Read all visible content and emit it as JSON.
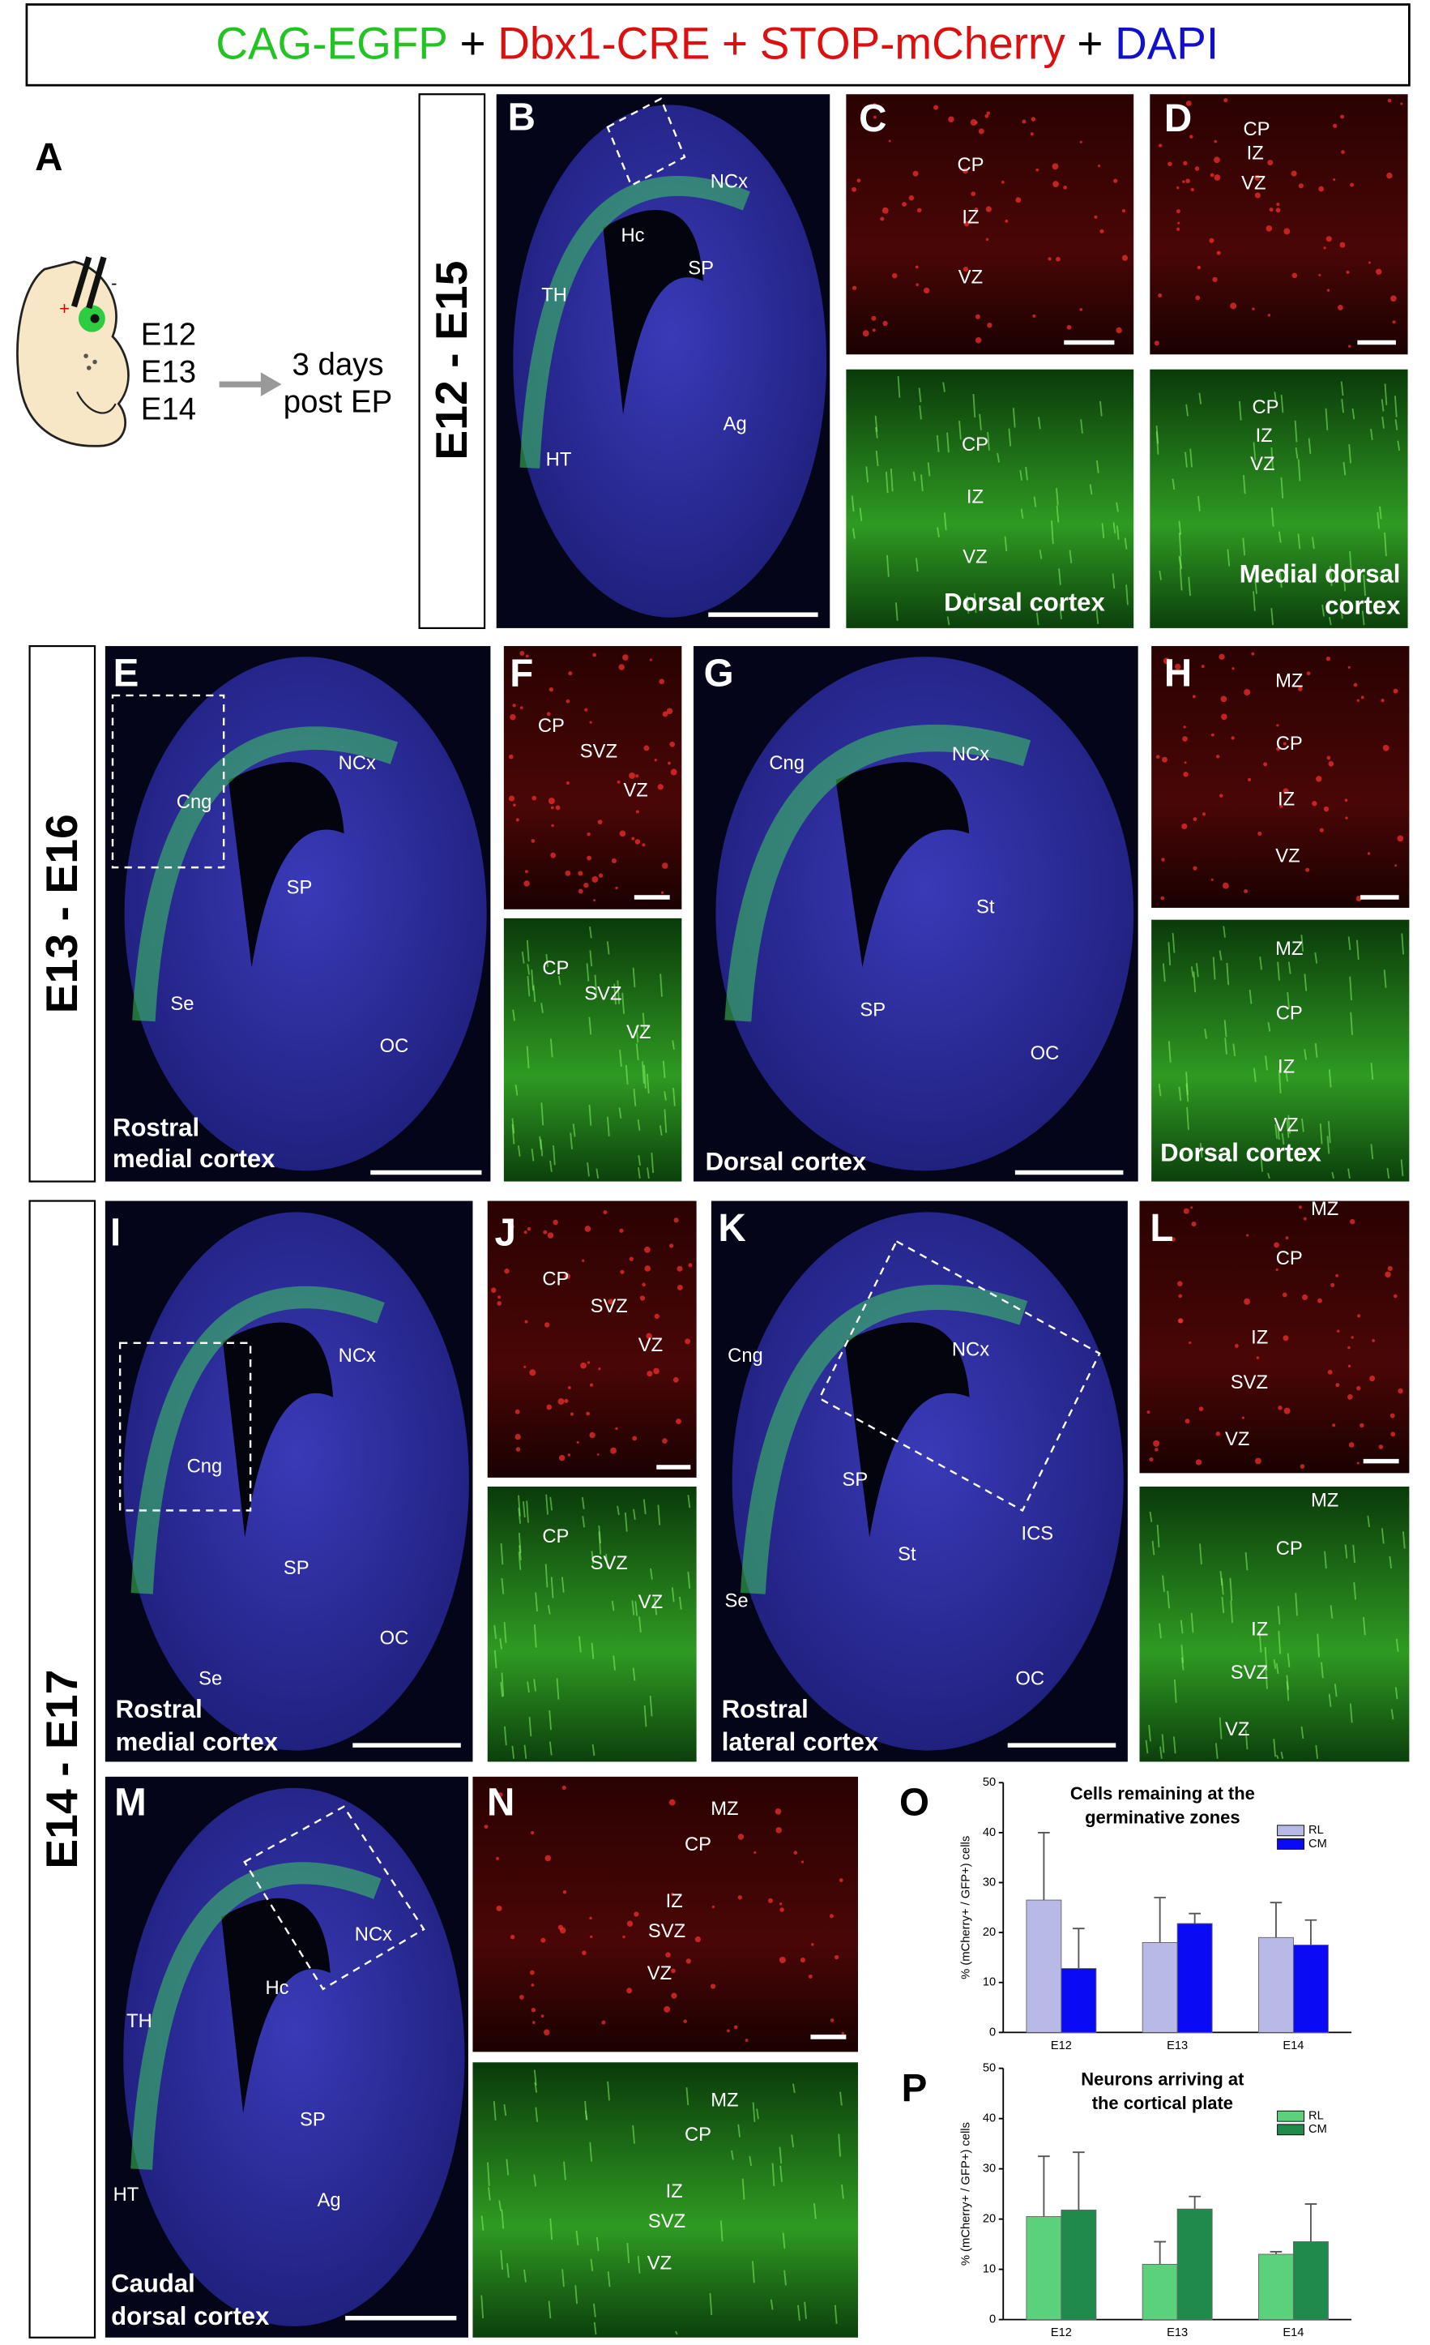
{
  "header": {
    "parts": [
      "CAG-EGFP",
      "+",
      "Dbx1-CRE",
      "+",
      "STOP-mCherry",
      "+",
      "DAPI"
    ]
  },
  "panel_a": {
    "label": "A",
    "stages": [
      "E12",
      "E13",
      "E14"
    ],
    "note": [
      "3 days",
      "post EP"
    ]
  },
  "row_labels": [
    "E12 - E15",
    "E13 - E16",
    "E14 - E17"
  ],
  "panels": {
    "B": {
      "label": "B",
      "regions": [
        "NCx",
        "Hc",
        "SP",
        "TH",
        "Ag",
        "HT"
      ]
    },
    "C": {
      "label": "C",
      "red": [
        "CP",
        "IZ",
        "VZ"
      ],
      "green": [
        "CP",
        "IZ",
        "VZ"
      ],
      "caption": [
        "Dorsal cortex"
      ]
    },
    "D": {
      "label": "D",
      "red": [
        "CP",
        "IZ",
        "VZ"
      ],
      "green": [
        "CP",
        "IZ",
        "VZ"
      ],
      "caption": [
        "Medial dorsal",
        "cortex"
      ]
    },
    "E": {
      "label": "E",
      "regions": [
        "NCx",
        "Cng",
        "SP",
        "Se",
        "OC"
      ],
      "caption": [
        "Rostral",
        "medial cortex"
      ]
    },
    "F": {
      "label": "F",
      "red": [
        "CP",
        "SVZ",
        "VZ"
      ],
      "green": [
        "CP",
        "SVZ",
        "VZ"
      ]
    },
    "G": {
      "label": "G",
      "regions": [
        "Cng",
        "NCx",
        "St",
        "SP",
        "OC"
      ],
      "caption": [
        "Dorsal cortex"
      ]
    },
    "H": {
      "label": "H",
      "red": [
        "MZ",
        "CP",
        "IZ",
        "VZ"
      ],
      "green": [
        "MZ",
        "CP",
        "IZ",
        "VZ"
      ],
      "caption": [
        "Dorsal cortex"
      ]
    },
    "I": {
      "label": "I",
      "regions": [
        "NCx",
        "Cng",
        "SP",
        "Se",
        "OC"
      ],
      "caption": [
        "Rostral",
        "medial cortex"
      ]
    },
    "J": {
      "label": "J",
      "red": [
        "CP",
        "SVZ",
        "VZ"
      ],
      "green": [
        "CP",
        "SVZ",
        "VZ"
      ]
    },
    "K": {
      "label": "K",
      "regions": [
        "Cng",
        "NCx",
        "SP",
        "St",
        "Se",
        "ICS",
        "OC"
      ],
      "caption": [
        "Rostral",
        "lateral cortex"
      ]
    },
    "L": {
      "label": "L",
      "red": [
        "MZ",
        "CP",
        "IZ",
        "SVZ",
        "VZ"
      ],
      "green": [
        "MZ",
        "CP",
        "IZ",
        "SVZ",
        "VZ"
      ]
    },
    "M": {
      "label": "M",
      "regions": [
        "NCx",
        "Hc",
        "TH",
        "SP",
        "HT",
        "Ag"
      ],
      "caption": [
        "Caudal",
        "dorsal cortex"
      ]
    },
    "N": {
      "label": "N",
      "red": [
        "MZ",
        "CP",
        "IZ",
        "SVZ",
        "VZ"
      ],
      "green": [
        "MZ",
        "CP",
        "IZ",
        "SVZ",
        "VZ"
      ]
    }
  },
  "chart_data": [
    {
      "type": "bar",
      "panel_label": "O",
      "title": [
        "Cells remaining at the",
        "germinative zones"
      ],
      "y_label": "% (mCherry+ / GFP+) cells",
      "categories": [
        "E12",
        "E13",
        "E14"
      ],
      "series": [
        {
          "name": "RL",
          "color": "#b9b9e8",
          "values": [
            26.5,
            18,
            19
          ],
          "errors": [
            13.5,
            9,
            7
          ]
        },
        {
          "name": "CM",
          "color": "#0a0af5",
          "values": [
            12.8,
            21.8,
            17.5
          ],
          "errors": [
            8,
            2,
            5
          ]
        }
      ],
      "ylim": [
        0,
        50
      ],
      "yticks": [
        0,
        10,
        20,
        30,
        40,
        50
      ],
      "legend": "upper right"
    },
    {
      "type": "bar",
      "panel_label": "P",
      "title": [
        "Neurons arriving at",
        "the cortical plate"
      ],
      "y_label": "% (mCherry+ / GFP+) cells",
      "categories": [
        "E12",
        "E13",
        "E14"
      ],
      "series": [
        {
          "name": "RL",
          "color": "#5cd17c",
          "values": [
            20.5,
            11,
            13
          ],
          "errors": [
            12,
            4.5,
            0.5
          ]
        },
        {
          "name": "CM",
          "color": "#1f8a4c",
          "values": [
            21.8,
            22,
            15.5
          ],
          "errors": [
            11.5,
            2.5,
            7.5
          ]
        }
      ],
      "ylim": [
        0,
        50
      ],
      "yticks": [
        0,
        10,
        20,
        30,
        40,
        50
      ],
      "legend": "upper right"
    }
  ]
}
